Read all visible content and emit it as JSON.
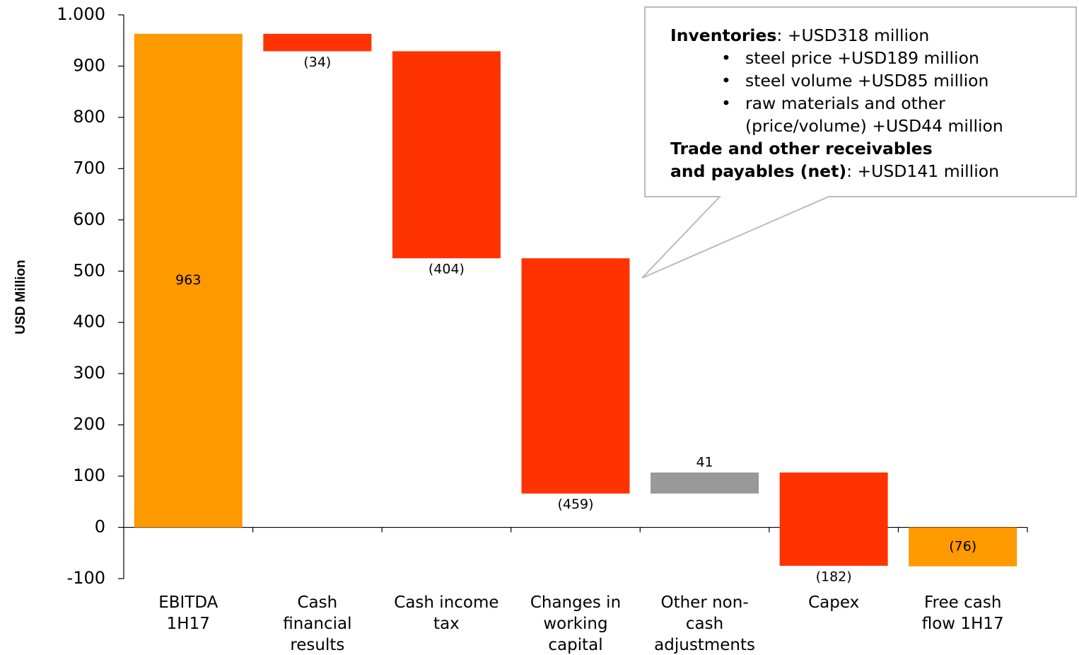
{
  "chart_data": {
    "type": "waterfall",
    "y_label": "USD Million",
    "categories": [
      "EBITDA\n1H17",
      "Cash\nfinancial\nresults",
      "Cash income\ntax",
      "Changes in\nworking\ncapital",
      "Other non-\ncash\nadjustments",
      "Capex",
      "Free cash\nflow 1H17"
    ],
    "values": [
      963,
      -34,
      -404,
      -459,
      41,
      -182,
      -76
    ],
    "value_labels": [
      "963",
      "(34)",
      "(404)",
      "(459)",
      "41",
      "(182)",
      "(76)"
    ],
    "measure": [
      "total",
      "relative",
      "relative",
      "relative",
      "relative",
      "relative",
      "total"
    ],
    "colors": [
      "#ff9900",
      "#ff3300",
      "#ff3300",
      "#ff3300",
      "#999999",
      "#ff3300",
      "#ff9900"
    ],
    "ylim": [
      -100,
      1000
    ],
    "yticks": [
      -100,
      0,
      100,
      200,
      300,
      400,
      500,
      600,
      700,
      800,
      900,
      {
        "value": 1000,
        "label": "1.000"
      }
    ],
    "annotation": {
      "heading1": "Inventories",
      "heading1_text": ": +USD318 million",
      "bullets": [
        "steel price +USD189 million",
        "steel volume +USD85 million",
        "raw materials and other\n(price/volume) +USD44 million"
      ],
      "heading2": "Trade and other receivables\nand payables (net)",
      "heading2_text": ": +USD141 million"
    }
  }
}
